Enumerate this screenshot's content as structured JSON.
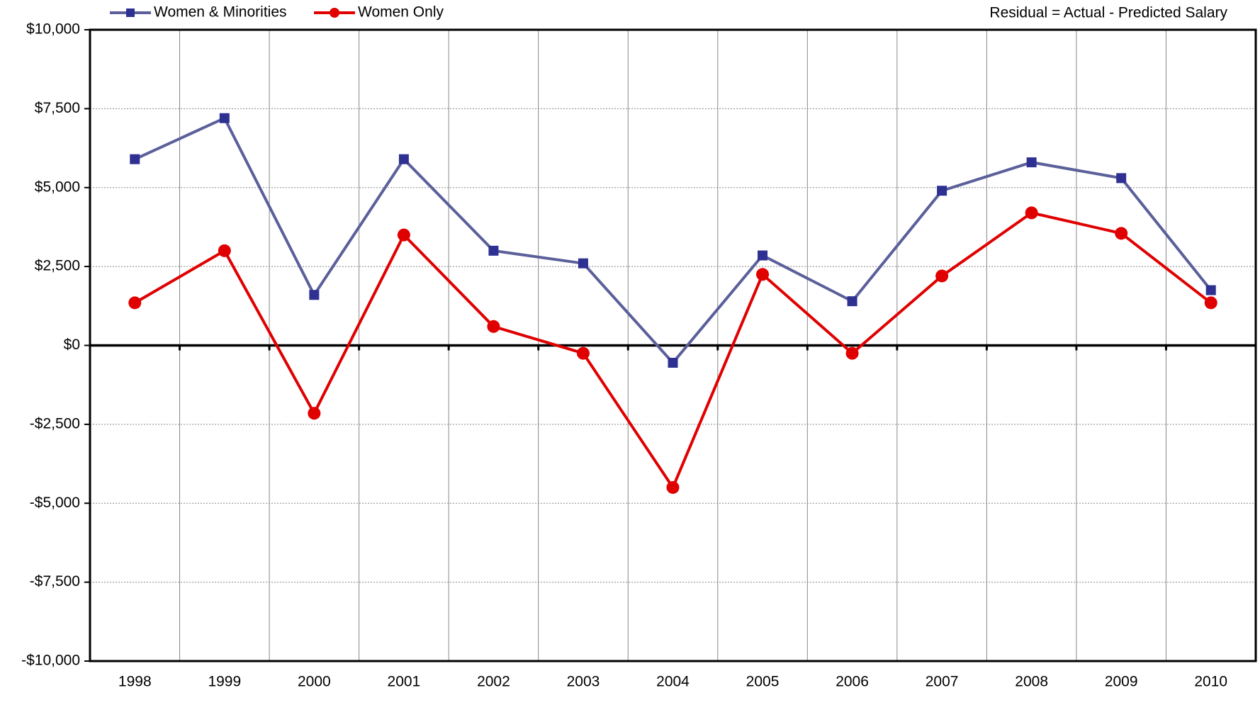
{
  "chart_data": {
    "type": "line",
    "annotation": "Residual = Actual - Predicted Salary",
    "categories": [
      "1998",
      "1999",
      "2000",
      "2001",
      "2002",
      "2003",
      "2004",
      "2005",
      "2006",
      "2007",
      "2008",
      "2009",
      "2010"
    ],
    "series": [
      {
        "name": "Women & Minorities",
        "color": "#5b5f9a",
        "marker_color": "#2e3192",
        "marker": "square",
        "values": [
          5900,
          7200,
          1600,
          5900,
          3000,
          2600,
          -550,
          2850,
          1400,
          4900,
          5800,
          5300,
          1750
        ]
      },
      {
        "name": "Women Only",
        "color": "#e00000",
        "marker_color": "#e00000",
        "marker": "circle",
        "values": [
          1350,
          3000,
          -2150,
          3500,
          600,
          -250,
          -4500,
          2250,
          -250,
          2200,
          4200,
          3550,
          1350
        ]
      }
    ],
    "ylim": [
      -10000,
      10000
    ],
    "yticks": [
      {
        "value": -10000,
        "label": "-$10,000"
      },
      {
        "value": -7500,
        "label": "-$7,500"
      },
      {
        "value": -5000,
        "label": "-$5,000"
      },
      {
        "value": -2500,
        "label": "-$2,500"
      },
      {
        "value": 0,
        "label": "$0"
      },
      {
        "value": 2500,
        "label": "$2,500"
      },
      {
        "value": 5000,
        "label": "$5,000"
      },
      {
        "value": 7500,
        "label": "$7,500"
      },
      {
        "value": 10000,
        "label": "$10,000"
      }
    ],
    "grid": true,
    "legend": "top-left"
  }
}
